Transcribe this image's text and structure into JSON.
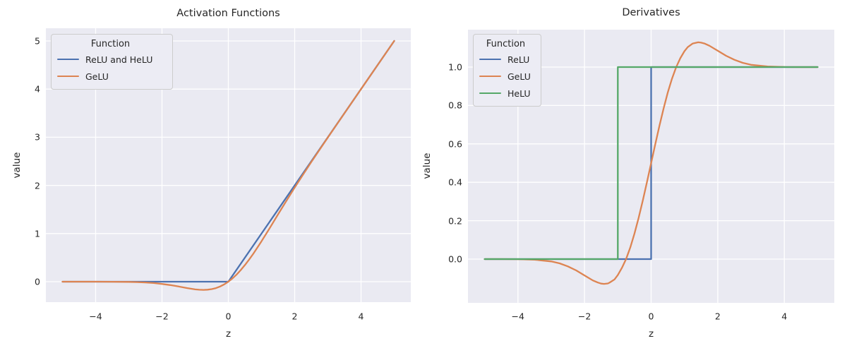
{
  "style": {
    "background": "#ffffff",
    "axes_bg": "#eaeaf2",
    "grid_color": "#ffffff",
    "text_color": "#262626",
    "legend_bg": "#ececf4",
    "legend_border": "#cccccc",
    "palette": {
      "blue": "#4c72b0",
      "orange": "#dd8452",
      "green": "#55a868"
    }
  },
  "chart_data": [
    {
      "type": "line",
      "title": "Activation Functions",
      "xlabel": "z",
      "ylabel": "value",
      "xlim": [
        -5.5,
        5.5
      ],
      "ylim": [
        -0.425,
        5.264
      ],
      "grid": true,
      "legend": {
        "title": "Function",
        "position": "upper left",
        "entries": [
          "ReLU and HeLU",
          "GeLU"
        ]
      },
      "xticks": {
        "values": [
          -4,
          -2,
          0,
          2,
          4
        ],
        "labels": [
          "−4",
          "−2",
          "0",
          "2",
          "4"
        ]
      },
      "yticks": {
        "values": [
          0,
          1,
          2,
          3,
          4,
          5
        ],
        "labels": [
          "0",
          "1",
          "2",
          "3",
          "4",
          "5"
        ]
      },
      "series": [
        {
          "name": "ReLU and HeLU",
          "color": "#4c72b0",
          "points": [
            [
              -5,
              0
            ],
            [
              0,
              0
            ],
            [
              5,
              5
            ]
          ]
        },
        {
          "name": "GeLU",
          "color": "#dd8452",
          "points": [
            [
              -5,
              0
            ],
            [
              -4.5,
              0
            ],
            [
              -4,
              -0.0001
            ],
            [
              -3.5,
              -0.0008
            ],
            [
              -3,
              -0.004
            ],
            [
              -2.75,
              -0.008
            ],
            [
              -2.5,
              -0.016
            ],
            [
              -2.25,
              -0.028
            ],
            [
              -2,
              -0.046
            ],
            [
              -1.75,
              -0.07
            ],
            [
              -1.5,
              -0.1
            ],
            [
              -1.25,
              -0.132
            ],
            [
              -1,
              -0.159
            ],
            [
              -0.875,
              -0.167
            ],
            [
              -0.75,
              -0.17
            ],
            [
              -0.625,
              -0.165
            ],
            [
              -0.5,
              -0.154
            ],
            [
              -0.375,
              -0.133
            ],
            [
              -0.25,
              -0.1
            ],
            [
              -0.125,
              -0.056
            ],
            [
              0,
              0
            ],
            [
              0.125,
              0.069
            ],
            [
              0.25,
              0.15
            ],
            [
              0.375,
              0.242
            ],
            [
              0.5,
              0.346
            ],
            [
              0.625,
              0.459
            ],
            [
              0.75,
              0.58
            ],
            [
              0.875,
              0.708
            ],
            [
              1,
              0.841
            ],
            [
              1.25,
              1.118
            ],
            [
              1.5,
              1.4
            ],
            [
              1.75,
              1.68
            ],
            [
              2,
              1.955
            ],
            [
              2.25,
              2.223
            ],
            [
              2.5,
              2.485
            ],
            [
              2.75,
              2.742
            ],
            [
              3,
              2.996
            ],
            [
              3.25,
              3.248
            ],
            [
              3.5,
              3.499
            ],
            [
              4,
              4.0
            ],
            [
              4.5,
              4.5
            ],
            [
              5,
              5.0
            ]
          ]
        }
      ]
    },
    {
      "type": "line",
      "title": "Derivatives",
      "xlabel": "z",
      "ylabel": "value",
      "xlim": [
        -5.5,
        5.5
      ],
      "ylim": [
        -0.228,
        1.195
      ],
      "grid": true,
      "legend": {
        "title": "Function",
        "position": "upper left",
        "entries": [
          "ReLU",
          "GeLU",
          "HeLU"
        ]
      },
      "xticks": {
        "values": [
          -4,
          -2,
          0,
          2,
          4
        ],
        "labels": [
          "−4",
          "−2",
          "0",
          "2",
          "4"
        ]
      },
      "yticks": {
        "values": [
          0,
          0.2,
          0.4,
          0.6,
          0.8,
          1.0
        ],
        "labels": [
          "0.0",
          "0.2",
          "0.4",
          "0.6",
          "0.8",
          "1.0"
        ]
      },
      "series": [
        {
          "name": "ReLU",
          "color": "#4c72b0",
          "points": [
            [
              -5,
              0
            ],
            [
              0,
              0
            ],
            [
              0,
              1
            ],
            [
              5,
              1
            ]
          ]
        },
        {
          "name": "GeLU",
          "color": "#dd8452",
          "points": [
            [
              -5,
              0
            ],
            [
              -4.5,
              -0.0002
            ],
            [
              -4,
              -0.0005
            ],
            [
              -3.5,
              -0.003
            ],
            [
              -3,
              -0.012
            ],
            [
              -2.75,
              -0.022
            ],
            [
              -2.5,
              -0.038
            ],
            [
              -2.25,
              -0.059
            ],
            [
              -2,
              -0.085
            ],
            [
              -1.75,
              -0.111
            ],
            [
              -1.6,
              -0.122
            ],
            [
              -1.5,
              -0.1275
            ],
            [
              -1.414,
              -0.129
            ],
            [
              -1.3,
              -0.127
            ],
            [
              -1.25,
              -0.123
            ],
            [
              -1.1,
              -0.106
            ],
            [
              -1,
              -0.083
            ],
            [
              -0.875,
              -0.045
            ],
            [
              -0.75,
              0.001
            ],
            [
              -0.625,
              0.061
            ],
            [
              -0.5,
              0.133
            ],
            [
              -0.375,
              0.215
            ],
            [
              -0.25,
              0.305
            ],
            [
              -0.125,
              0.401
            ],
            [
              0,
              0.5
            ],
            [
              0.125,
              0.599
            ],
            [
              0.25,
              0.695
            ],
            [
              0.375,
              0.785
            ],
            [
              0.5,
              0.868
            ],
            [
              0.625,
              0.939
            ],
            [
              0.75,
              0.999
            ],
            [
              0.875,
              1.046
            ],
            [
              1,
              1.083
            ],
            [
              1.1,
              1.104
            ],
            [
              1.25,
              1.123
            ],
            [
              1.414,
              1.129
            ],
            [
              1.5,
              1.1275
            ],
            [
              1.6,
              1.123
            ],
            [
              1.75,
              1.111
            ],
            [
              2,
              1.085
            ],
            [
              2.25,
              1.059
            ],
            [
              2.5,
              1.038
            ],
            [
              2.75,
              1.022
            ],
            [
              3,
              1.012
            ],
            [
              3.5,
              1.003
            ],
            [
              4,
              1.0005
            ],
            [
              4.5,
              1.0001
            ],
            [
              5,
              1.0
            ]
          ]
        },
        {
          "name": "HeLU",
          "color": "#55a868",
          "points": [
            [
              -5,
              0
            ],
            [
              -1,
              0
            ],
            [
              -1,
              1
            ],
            [
              5,
              1
            ]
          ]
        }
      ]
    }
  ]
}
